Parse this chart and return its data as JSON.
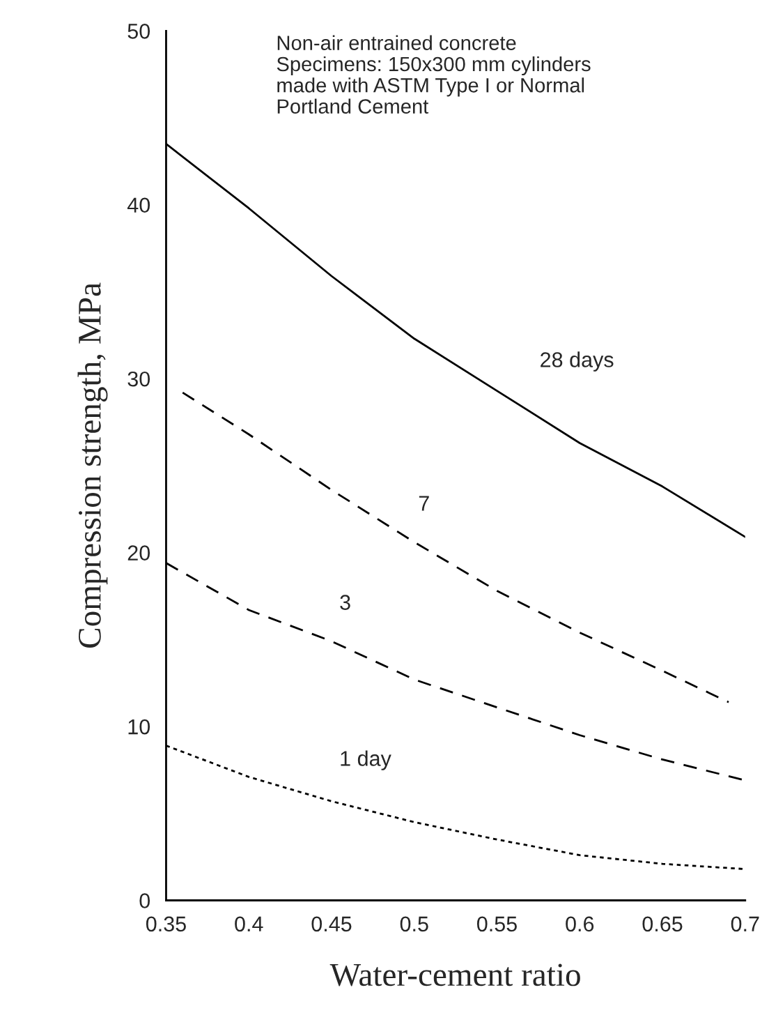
{
  "chart_data": {
    "type": "line",
    "xlabel": "Water-cement ratio",
    "ylabel": "Compression strength, MPa",
    "xlim": [
      0.35,
      0.7
    ],
    "xticks": [
      0.35,
      0.4,
      0.45,
      0.5,
      0.55,
      0.6,
      0.65,
      0.7
    ],
    "ylim": [
      0,
      50
    ],
    "yticks": [
      0,
      10,
      20,
      30,
      40,
      50
    ],
    "grid": false,
    "legend": false,
    "marker": "none",
    "series": [
      {
        "name": "28 days",
        "color": "#000000",
        "line_style": "solid",
        "x": [
          0.35,
          0.4,
          0.45,
          0.5,
          0.55,
          0.6,
          0.65,
          0.7
        ],
        "values": [
          43.5,
          39.8,
          35.9,
          32.3,
          29.3,
          26.3,
          23.8,
          20.9
        ]
      },
      {
        "name": "7",
        "color": "#000000",
        "line_style": "dashed",
        "x": [
          0.36,
          0.4,
          0.45,
          0.5,
          0.55,
          0.6,
          0.65,
          0.69
        ],
        "values": [
          29.2,
          26.8,
          23.6,
          20.6,
          17.8,
          15.4,
          13.2,
          11.4
        ]
      },
      {
        "name": "3",
        "color": "#000000",
        "line_style": "dashed",
        "x": [
          0.35,
          0.4,
          0.45,
          0.5,
          0.55,
          0.6,
          0.65,
          0.7
        ],
        "values": [
          19.4,
          16.7,
          14.9,
          12.7,
          11.1,
          9.5,
          8.1,
          6.9
        ]
      },
      {
        "name": "1 day",
        "color": "#000000",
        "line_style": "dotted",
        "x": [
          0.35,
          0.4,
          0.45,
          0.5,
          0.55,
          0.6,
          0.65,
          0.7
        ],
        "values": [
          8.9,
          7.1,
          5.7,
          4.5,
          3.5,
          2.6,
          2.1,
          1.8
        ]
      }
    ],
    "annotations": [
      "Non-air entrained concrete\nSpecimens: 150x300 mm cylinders\nmade with ASTM Type I or Normal\nPortland Cement"
    ]
  }
}
